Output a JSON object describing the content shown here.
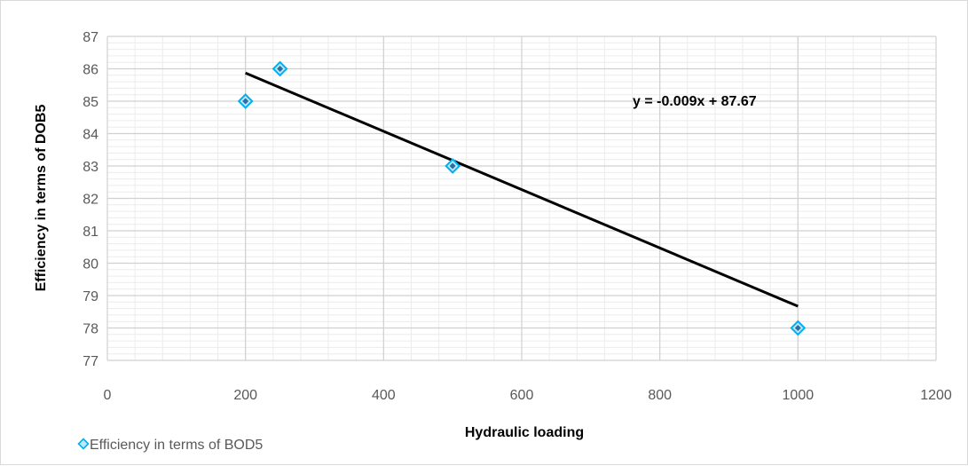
{
  "chart_data": {
    "type": "scatter",
    "xlabel": "Hydraulic loading",
    "ylabel": "Efficiency in terms of DOB5",
    "xlim": [
      0,
      1200
    ],
    "ylim": [
      77,
      87
    ],
    "x_ticks": [
      0,
      200,
      400,
      600,
      800,
      1000,
      1200
    ],
    "y_ticks": [
      77,
      78,
      79,
      80,
      81,
      82,
      83,
      84,
      85,
      86,
      87
    ],
    "x_tick_labels": [
      "0",
      "200",
      "400",
      "600",
      "800",
      "1000",
      "1200"
    ],
    "y_tick_labels": [
      "77",
      "78",
      "79",
      "80",
      "81",
      "82",
      "83",
      "84",
      "85",
      "86",
      "87"
    ],
    "grid": true,
    "legend_position": "bottom-left",
    "series": [
      {
        "name": "Efficiency in terms of BOD5",
        "x": [
          200,
          250,
          500,
          1000
        ],
        "y": [
          85,
          86,
          83,
          78
        ],
        "marker": "diamond",
        "color": "#00B0F0"
      }
    ],
    "trendline": {
      "type": "linear",
      "slope": -0.009,
      "intercept": 87.67,
      "x_range": [
        200,
        1000
      ],
      "label": "y = -0.009x + 87.67",
      "color": "#000000"
    }
  }
}
